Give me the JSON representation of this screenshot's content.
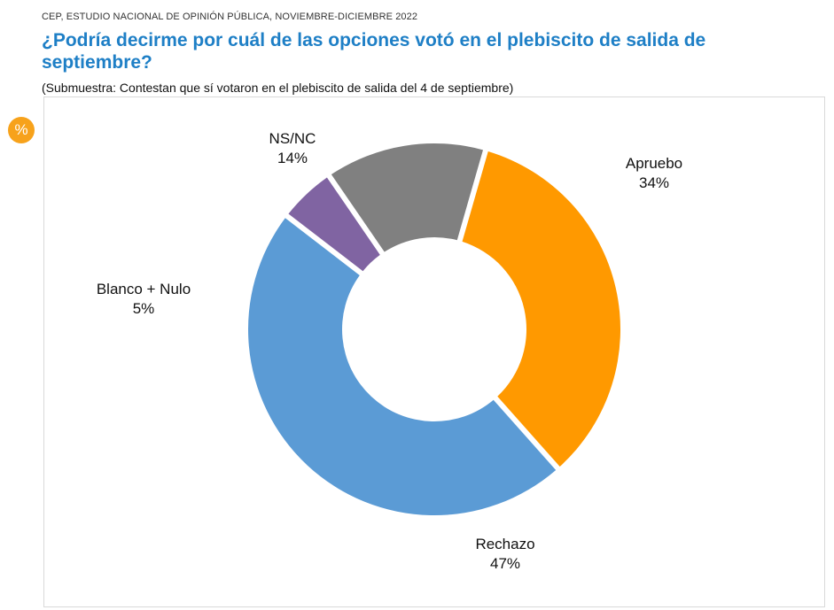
{
  "header": {
    "source": "CEP, ESTUDIO NACIONAL DE OPINIÓN PÚBLICA, NOVIEMBRE-DICIEMBRE 2022",
    "title": "¿Podría decirme por cuál de las opciones votó en el plebiscito de salida de septiembre?",
    "subtitle": "(Submuestra: Contestan que sí votaron en el plebiscito de salida del 4 de septiembre)",
    "badge": "%"
  },
  "chart_data": {
    "type": "pie",
    "donut": true,
    "categories": [
      "Apruebo",
      "Rechazo",
      "Blanco + Nulo",
      "NS/NC"
    ],
    "values": [
      34,
      47,
      5,
      14
    ],
    "labels": [
      "34%",
      "47%",
      "5%",
      "14%"
    ],
    "colors": [
      "#ff9900",
      "#5b9bd5",
      "#8064a2",
      "#808080"
    ],
    "title": "",
    "legend": "none"
  }
}
